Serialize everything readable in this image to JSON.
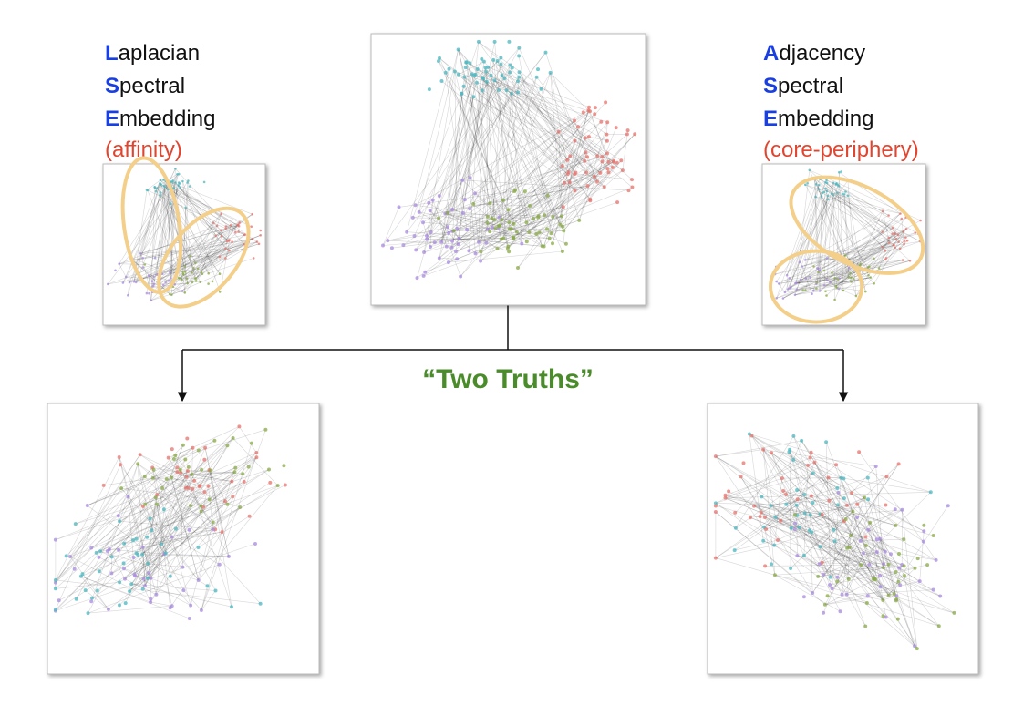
{
  "left_label": {
    "lines": [
      {
        "initial": "L",
        "rest": "aplacian"
      },
      {
        "initial": "S",
        "rest": "pectral"
      },
      {
        "initial": "E",
        "rest": "mbedding"
      }
    ],
    "note": "(affinity)"
  },
  "right_label": {
    "lines": [
      {
        "initial": "A",
        "rest": "djacency"
      },
      {
        "initial": "S",
        "rest": "pectral"
      },
      {
        "initial": "E",
        "rest": "mbedding"
      }
    ],
    "note": "(core-periphery)"
  },
  "center_label": "“Two Truths”"
}
